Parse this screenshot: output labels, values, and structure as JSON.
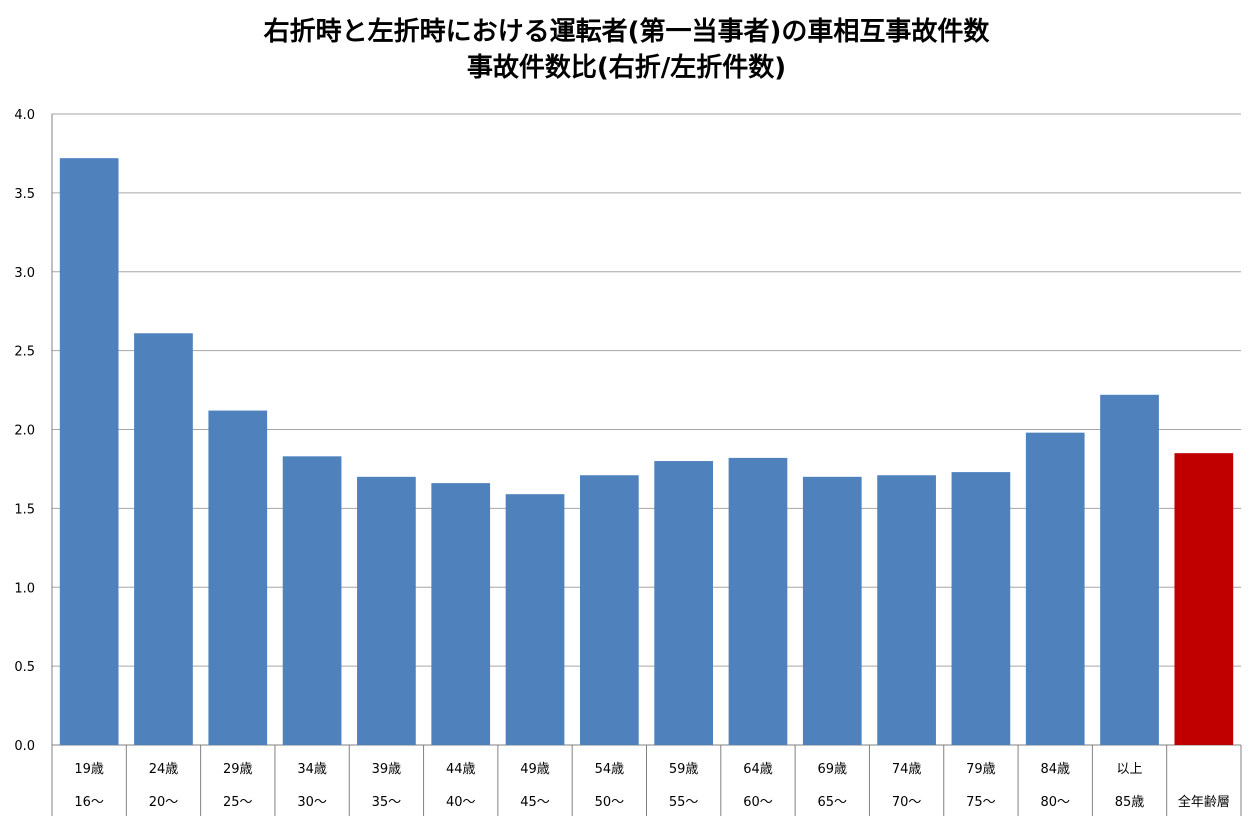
{
  "chart_data": {
    "type": "bar",
    "title": "右折時と左折時における運転者(第一当事者)の車相互事故件数",
    "subtitle": "事故件数比(右折/左折件数)",
    "xlabel": "",
    "ylabel": "",
    "ylim": [
      0,
      4.0
    ],
    "yticks": [
      "0.0",
      "0.5",
      "1.0",
      "1.5",
      "2.0",
      "2.5",
      "3.0",
      "3.5",
      "4.0"
    ],
    "grid": true,
    "categories": [
      {
        "line1": "19歳",
        "line2": "16～"
      },
      {
        "line1": "24歳",
        "line2": "20～"
      },
      {
        "line1": "29歳",
        "line2": "25～"
      },
      {
        "line1": "34歳",
        "line2": "30～"
      },
      {
        "line1": "39歳",
        "line2": "35～"
      },
      {
        "line1": "44歳",
        "line2": "40～"
      },
      {
        "line1": "49歳",
        "line2": "45～"
      },
      {
        "line1": "54歳",
        "line2": "50～"
      },
      {
        "line1": "59歳",
        "line2": "55～"
      },
      {
        "line1": "64歳",
        "line2": "60～"
      },
      {
        "line1": "69歳",
        "line2": "65～"
      },
      {
        "line1": "74歳",
        "line2": "70～"
      },
      {
        "line1": "79歳",
        "line2": "75～"
      },
      {
        "line1": "84歳",
        "line2": "80～"
      },
      {
        "line1": "以上",
        "line2": "85歳"
      },
      {
        "line1": "",
        "line2": "全年齢層"
      }
    ],
    "values": [
      3.72,
      2.61,
      2.12,
      1.83,
      1.7,
      1.66,
      1.59,
      1.71,
      1.8,
      1.82,
      1.7,
      1.71,
      1.73,
      1.98,
      2.22,
      1.85
    ],
    "colors": {
      "bar": "#4f81bd",
      "highlight_bar": "#c00000",
      "gridline": "#a6a6a6",
      "axis": "#808080"
    },
    "highlight_index": 15
  }
}
